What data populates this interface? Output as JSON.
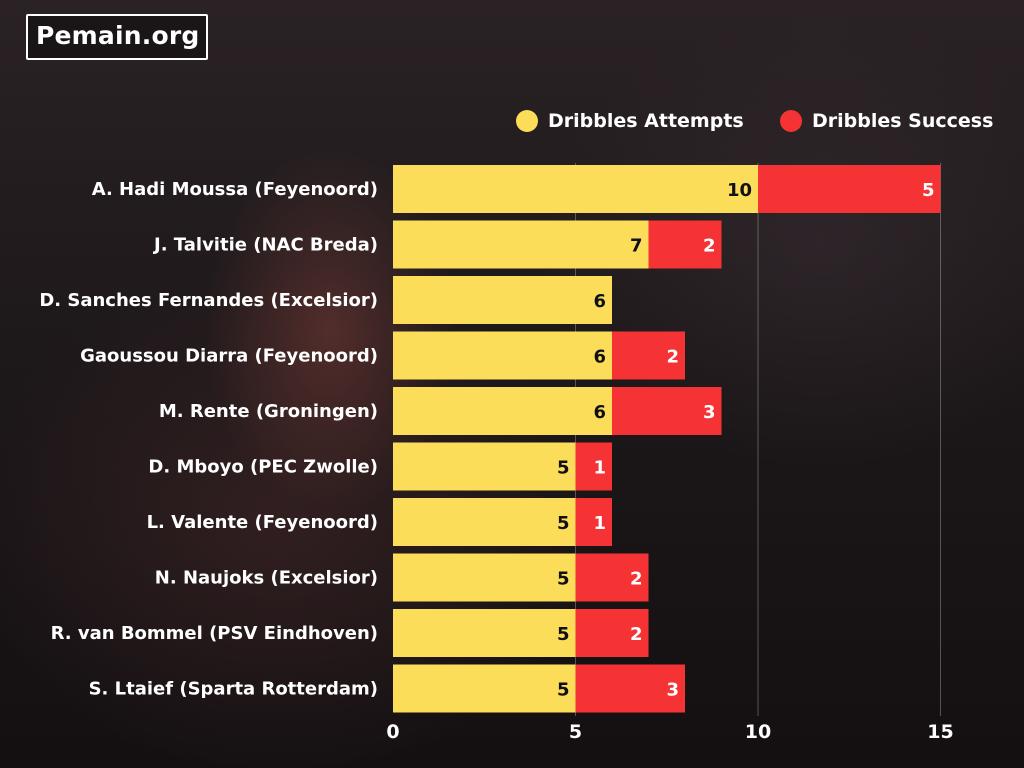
{
  "brand": {
    "logo_text": "Pemain.org"
  },
  "colors": {
    "attempts": "#FBDD5A",
    "success": "#F53334",
    "text_dark": "#111111",
    "text_light": "#ffffff"
  },
  "legend": [
    {
      "label": "Dribbles Attempts",
      "color": "#FBDD5A"
    },
    {
      "label": "Dribbles Success",
      "color": "#F53334"
    }
  ],
  "chart_data": {
    "type": "bar",
    "orientation": "horizontal",
    "stacked": true,
    "categories": [
      "A. Hadi Moussa (Feyenoord)",
      "J. Talvitie (NAC Breda)",
      "D. Sanches Fernandes (Excelsior)",
      "Gaoussou Diarra (Feyenoord)",
      "M. Rente (Groningen)",
      "D. Mboyo (PEC Zwolle)",
      "L. Valente (Feyenoord)",
      "N. Naujoks (Excelsior)",
      "R. van Bommel (PSV Eindhoven)",
      "S. Ltaief (Sparta Rotterdam)"
    ],
    "series": [
      {
        "name": "Dribbles Attempts",
        "values": [
          10,
          7,
          6,
          6,
          6,
          5,
          5,
          5,
          5,
          5
        ]
      },
      {
        "name": "Dribbles Success",
        "values": [
          5,
          2,
          0,
          2,
          3,
          1,
          1,
          2,
          2,
          3
        ]
      }
    ],
    "xlim": [
      0,
      15
    ],
    "xticks": [
      0,
      5,
      10,
      15
    ],
    "grid": "vertical",
    "legend_position": "top-right",
    "title": "",
    "xlabel": "",
    "ylabel": ""
  }
}
